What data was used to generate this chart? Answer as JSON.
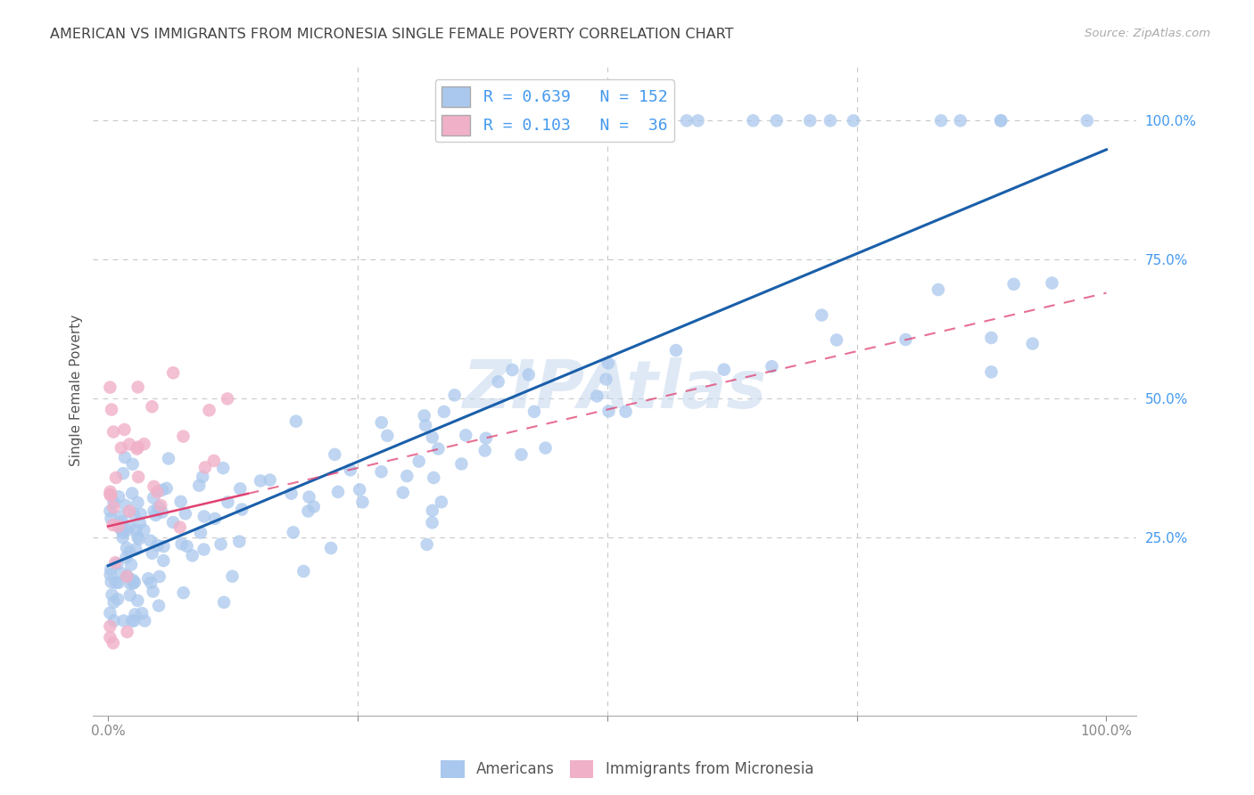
{
  "title": "AMERICAN VS IMMIGRANTS FROM MICRONESIA SINGLE FEMALE POVERTY CORRELATION CHART",
  "source": "Source: ZipAtlas.com",
  "ylabel": "Single Female Poverty",
  "watermark": "ZIPAtlas",
  "legend_american": {
    "R": 0.639,
    "N": 152
  },
  "legend_micronesia": {
    "R": 0.103,
    "N": 36
  },
  "american_color": "#aac8ed",
  "micronesia_color": "#f0b0c8",
  "american_line_color": "#1a5faa",
  "micronesia_line_color": "#e04070",
  "background_color": "#ffffff",
  "grid_color": "#c8c8c8",
  "title_color": "#444444",
  "right_tick_color": "#4499ee",
  "bottom_tick_color": "#888888"
}
